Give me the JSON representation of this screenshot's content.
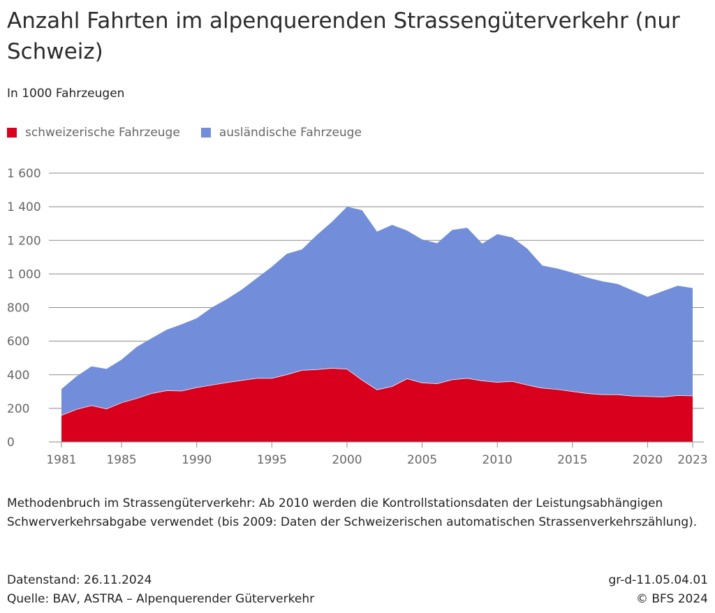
{
  "chart_data": {
    "type": "area",
    "stacked": true,
    "title": "Anzahl Fahrten im alpenquerenden Strassengüterverkehr (nur Schweiz)",
    "subtitle": "In 1000 Fahrzeugen",
    "ylim": [
      0,
      1600
    ],
    "yticks": [
      0,
      200,
      400,
      600,
      800,
      1000,
      1200,
      1400,
      1600
    ],
    "ytick_labels": [
      "0",
      "200",
      "400",
      "600",
      "800",
      "1 000",
      "1 200",
      "1 400",
      "1 600"
    ],
    "xticks": [
      1981,
      1985,
      1990,
      1995,
      2000,
      2005,
      2010,
      2015,
      2020,
      2023
    ],
    "xtick_labels": [
      "1981",
      "1985",
      "1990",
      "1995",
      "2000",
      "2005",
      "2010",
      "2015",
      "2020",
      "2023"
    ],
    "grid": true,
    "legend_position": "top-left",
    "x": [
      1981,
      1982,
      1983,
      1984,
      1985,
      1986,
      1987,
      1988,
      1989,
      1990,
      1991,
      1992,
      1993,
      1994,
      1995,
      1996,
      1997,
      1998,
      1999,
      2000,
      2001,
      2002,
      2003,
      2004,
      2005,
      2006,
      2007,
      2008,
      2009,
      2010,
      2011,
      2012,
      2013,
      2014,
      2015,
      2016,
      2017,
      2018,
      2019,
      2020,
      2021,
      2022,
      2023
    ],
    "series": [
      {
        "name": "schweizerische Fahrzeuge",
        "color": "#d8001d",
        "values": [
          160,
          195,
          218,
          198,
          235,
          260,
          290,
          307,
          305,
          325,
          340,
          355,
          368,
          380,
          380,
          402,
          428,
          432,
          440,
          435,
          370,
          312,
          332,
          378,
          353,
          348,
          372,
          380,
          365,
          357,
          362,
          340,
          322,
          314,
          302,
          290,
          283,
          283,
          275,
          272,
          269,
          278,
          276
        ]
      },
      {
        "name": "ausländische Fahrzeuge",
        "color": "#728dd9",
        "values": [
          155,
          195,
          232,
          237,
          255,
          305,
          327,
          361,
          395,
          411,
          460,
          495,
          539,
          595,
          663,
          718,
          718,
          800,
          870,
          965,
          1010,
          940,
          960,
          880,
          852,
          835,
          890,
          895,
          815,
          880,
          855,
          810,
          728,
          718,
          706,
          688,
          673,
          658,
          627,
          592,
          628,
          652,
          640
        ]
      }
    ]
  },
  "note": "Methodenbruch im Strassengüterverkehr: Ab 2010 werden die Kontrollstationsdaten der Leistungsabhängigen Schwerverkehrsabgabe verwendet (bis 2009: Daten der Schweizerischen automatischen Strassenverkehrszählung).",
  "footer": {
    "datenstand": "Datenstand: 26.11.2024",
    "quelle": "Quelle: BAV, ASTRA – Alpenquerender Güterverkehr",
    "code": "gr-d-11.05.04.01",
    "copyright": "© BFS 2024"
  }
}
